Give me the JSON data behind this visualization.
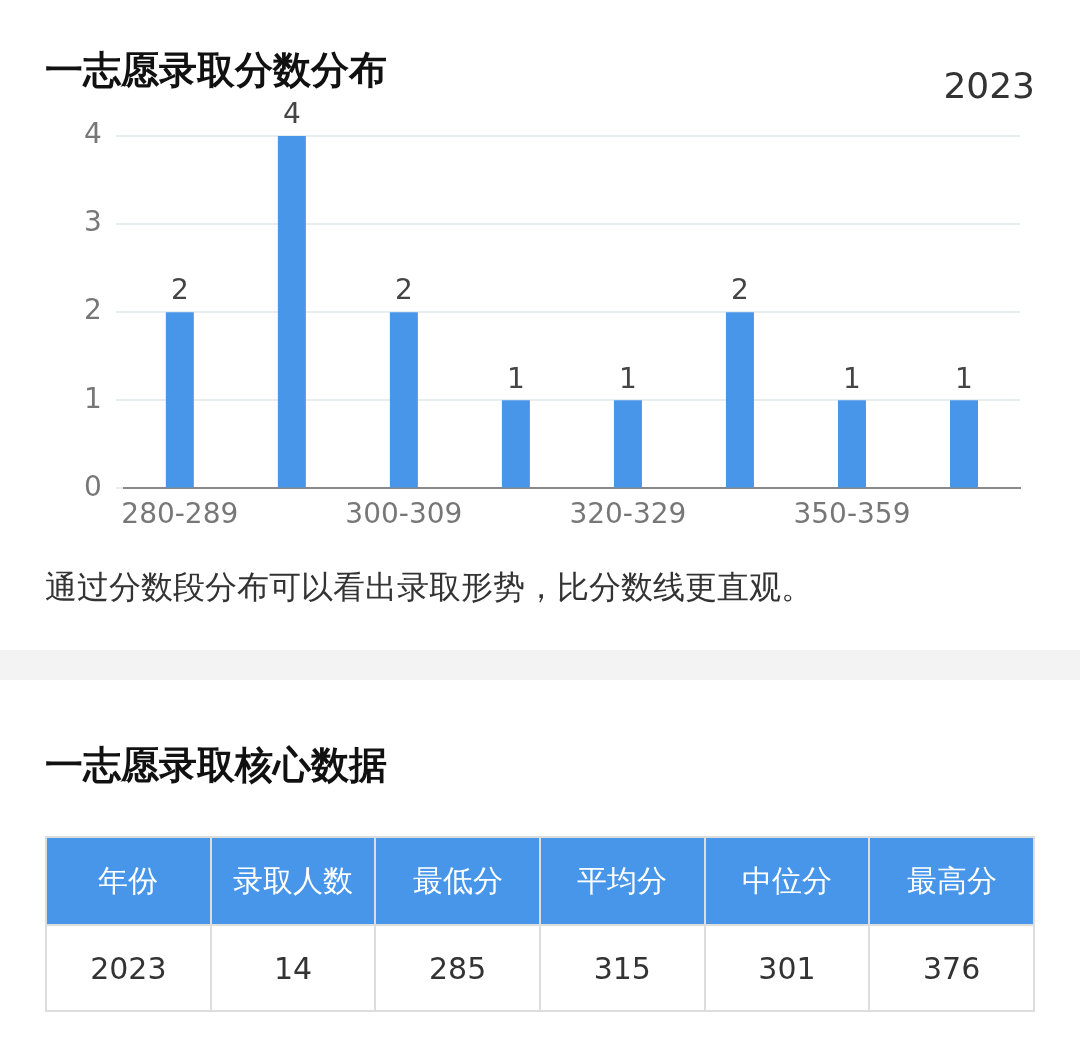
{
  "chart_data": [
    {
      "type": "bar",
      "title": "一志愿录取分数分布",
      "subtitle": "2023",
      "categories": [
        "280-289",
        null,
        "300-309",
        null,
        "320-329",
        null,
        "350-359",
        null
      ],
      "values": [
        2,
        4,
        2,
        1,
        1,
        2,
        1,
        1
      ],
      "color": "#4896ea",
      "ylim": [
        0,
        4
      ],
      "yticks": [
        0,
        1,
        2,
        3,
        4
      ],
      "grid": "y",
      "data_labels": true,
      "legend": false,
      "annotations": [
        "通过分数段分布可以看出录取形势，比分数线更直观。"
      ]
    },
    {
      "type": "other",
      "title": "一志愿录取核心数据",
      "categories": [
        "年份",
        "录取人数",
        "最低分",
        "平均分",
        "中位分",
        "最高分"
      ],
      "values": [
        2023,
        14,
        285,
        315,
        301,
        376
      ],
      "color": "#4896ea",
      "data_labels": true
    }
  ]
}
